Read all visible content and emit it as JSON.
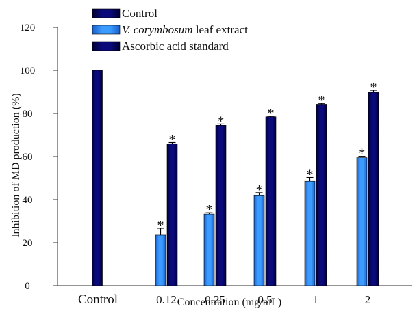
{
  "chart_data": {
    "type": "bar",
    "xlabel": "Concentration (mg/mL)",
    "ylabel": "Inhibition of MD production (%)",
    "ylim": [
      0,
      120
    ],
    "yticks": [
      0,
      20,
      40,
      60,
      80,
      100,
      120
    ],
    "categories": [
      "Control",
      "0.12",
      "0.25",
      "0.5",
      "1",
      "2"
    ],
    "legend_position": "top-left",
    "significance_marker": "*",
    "series": [
      {
        "name": "Control",
        "color": "#0a0a7a",
        "values": [
          100,
          null,
          null,
          null,
          null,
          null
        ],
        "errors": [
          0,
          null,
          null,
          null,
          null,
          null
        ],
        "significant": [
          false,
          false,
          false,
          false,
          false,
          false
        ]
      },
      {
        "name": "V. corymbosum leaf extract",
        "color": "#2f8fff",
        "values": [
          null,
          23.5,
          33.3,
          41.8,
          48.5,
          59.5
        ],
        "errors": [
          null,
          3.2,
          0.6,
          1.4,
          1.8,
          0.6
        ],
        "significant": [
          false,
          true,
          true,
          true,
          true,
          true
        ]
      },
      {
        "name": "Ascorbic acid standard",
        "color": "#0a0a7a",
        "values": [
          null,
          65.8,
          74.5,
          78.5,
          84.3,
          89.8
        ],
        "errors": [
          null,
          0.7,
          0.6,
          0.3,
          0.4,
          1.0
        ],
        "significant": [
          false,
          true,
          true,
          true,
          true,
          true
        ]
      }
    ]
  }
}
